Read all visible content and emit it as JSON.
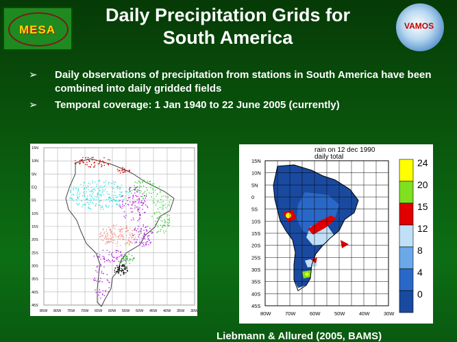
{
  "slide": {
    "title_line1": "Daily Precipitation Grids for",
    "title_line2": "South America",
    "bullets": [
      {
        "marker": "➢",
        "text": "Daily observations of precipitation from stations in South America have been combined into daily gridded fields"
      },
      {
        "marker": "➢",
        "text": "Temporal coverage: 1 Jan 1940 to 22 June 2005 (currently)"
      }
    ],
    "citation": "Liebmann & Allured (2005, BAMS)"
  },
  "logos": {
    "left": {
      "text": "MESA"
    },
    "right": {
      "text": "VAMOS"
    }
  },
  "station_map": {
    "lat_labels": [
      "15N",
      "10N",
      "5N",
      "EQ",
      "5S",
      "10S",
      "15S",
      "20S",
      "25S",
      "30S",
      "35S",
      "40S",
      "45S"
    ],
    "lon_labels": [
      "85W",
      "80W",
      "75W",
      "70W",
      "65W",
      "60W",
      "55W",
      "50W",
      "45W",
      "40W",
      "35W",
      "30W"
    ]
  },
  "rain_map": {
    "title": "rain on  12 dec 1990",
    "subtitle": "daily total",
    "lat_labels": [
      "15N",
      "10N",
      "5N",
      "0",
      "5S",
      "10S",
      "15S",
      "20S",
      "25S",
      "30S",
      "35S",
      "40S",
      "45S"
    ],
    "lon_labels": [
      "80W",
      "70W",
      "60W",
      "50W",
      "40W",
      "30W"
    ],
    "colorbar": [
      {
        "label": "24",
        "color": "#ffff00"
      },
      {
        "label": "20",
        "color": "#7fe020"
      },
      {
        "label": "15",
        "color": "#e00000"
      },
      {
        "label": "12",
        "color": "#c0e0f8"
      },
      {
        "label": "8",
        "color": "#6aa8e8"
      },
      {
        "label": "4",
        "color": "#2a68c8"
      },
      {
        "label": "0",
        "color": "#1a4aa0"
      }
    ]
  }
}
